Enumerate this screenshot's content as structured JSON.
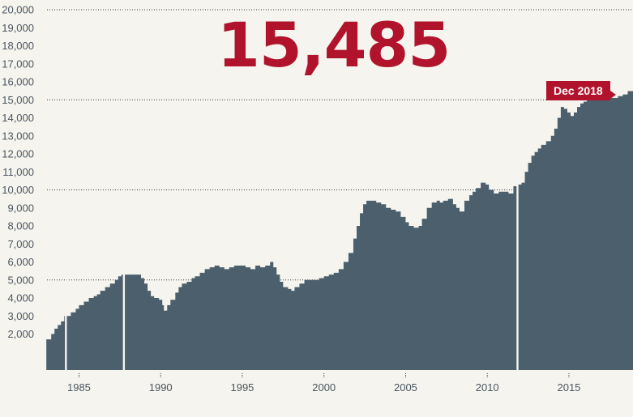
{
  "headline": {
    "value": "15,485"
  },
  "callout": {
    "label": "Dec 2018"
  },
  "colors": {
    "area": "#4b5f6d",
    "accent": "#b0132b",
    "background": "#f6f4ee",
    "axis_text": "#4a5661"
  },
  "chart_data": {
    "type": "area",
    "title": "",
    "xlabel": "",
    "ylabel": "",
    "xlim": [
      1982.0,
      2019.0
    ],
    "ylim": [
      0,
      20000
    ],
    "x_ticks": [
      1985,
      1990,
      1995,
      2000,
      2005,
      2010,
      2015
    ],
    "x_tick_labels": [
      "1985",
      "1990",
      "1995",
      "2000",
      "2005",
      "2010",
      "2015"
    ],
    "y_ticks": [
      2000,
      3000,
      4000,
      5000,
      6000,
      7000,
      8000,
      9000,
      10000,
      11000,
      12000,
      13000,
      14000,
      15000,
      16000,
      17000,
      18000,
      19000,
      20000
    ],
    "y_tick_labels": [
      "2,000",
      "3,000",
      "4,000",
      "5,000",
      "6,000",
      "7,000",
      "8,000",
      "9,000",
      "10,000",
      "11,000",
      "12,000",
      "13,000",
      "14,000",
      "15,000",
      "16,000",
      "17,000",
      "18,000",
      "19,000",
      "20,000"
    ],
    "dotted_reference_lines": [
      5000,
      10000,
      15000,
      20000
    ],
    "gaps_x": [
      1984.2,
      1987.75,
      2011.85
    ],
    "series": [
      {
        "x": [
          1983.0,
          1983.3,
          1983.5,
          1983.7,
          1983.9,
          1984.1,
          1984.5,
          1984.8,
          1985.0,
          1985.3,
          1985.6,
          1985.9,
          1986.1,
          1986.3,
          1986.6,
          1986.9,
          1987.2,
          1987.4,
          1987.6,
          1987.9,
          1988.2,
          1988.5,
          1988.8,
          1989.0,
          1989.2,
          1989.4,
          1989.6,
          1989.9,
          1990.1,
          1990.2,
          1990.4,
          1990.6,
          1990.9,
          1991.1,
          1991.3,
          1991.6,
          1991.9,
          1992.1,
          1992.4,
          1992.7,
          1993.0,
          1993.3,
          1993.6,
          1993.9,
          1994.2,
          1994.5,
          1994.8,
          1995.2,
          1995.5,
          1995.8,
          1996.1,
          1996.4,
          1996.7,
          1996.9,
          1997.1,
          1997.3,
          1997.5,
          1997.8,
          1998.0,
          1998.2,
          1998.5,
          1998.8,
          1999.1,
          1999.4,
          1999.7,
          2000.0,
          2000.3,
          2000.6,
          2000.9,
          2001.2,
          2001.5,
          2001.8,
          2002.0,
          2002.2,
          2002.4,
          2002.6,
          2002.9,
          2003.2,
          2003.5,
          2003.8,
          2004.1,
          2004.4,
          2004.7,
          2005.0,
          2005.2,
          2005.5,
          2005.8,
          2006.0,
          2006.3,
          2006.6,
          2006.9,
          2007.1,
          2007.3,
          2007.6,
          2007.9,
          2008.1,
          2008.3,
          2008.6,
          2008.9,
          2009.1,
          2009.3,
          2009.6,
          2009.9,
          2010.1,
          2010.4,
          2010.7,
          2011.0,
          2011.3,
          2011.6,
          2011.9,
          2012.1,
          2012.3,
          2012.5,
          2012.7,
          2012.9,
          2013.1,
          2013.3,
          2013.6,
          2013.9,
          2014.1,
          2014.3,
          2014.5,
          2014.7,
          2014.9,
          2015.1,
          2015.3,
          2015.5,
          2015.7,
          2015.9,
          2016.1,
          2016.3,
          2016.5,
          2016.8,
          2017.1,
          2017.4,
          2017.7,
          2018.0,
          2018.3,
          2018.6,
          2018.9
        ],
        "values": [
          1700,
          2000,
          2300,
          2500,
          2700,
          3000,
          3200,
          3400,
          3600,
          3800,
          4000,
          4100,
          4200,
          4400,
          4600,
          4800,
          5000,
          5200,
          5300,
          5300,
          5300,
          5300,
          5100,
          4800,
          4400,
          4100,
          4000,
          3900,
          3600,
          3300,
          3600,
          3900,
          4300,
          4600,
          4800,
          4900,
          5100,
          5200,
          5400,
          5600,
          5700,
          5800,
          5700,
          5600,
          5700,
          5800,
          5800,
          5700,
          5600,
          5800,
          5700,
          5800,
          6000,
          5700,
          5300,
          4900,
          4600,
          4500,
          4400,
          4600,
          4800,
          5000,
          5000,
          5000,
          5100,
          5200,
          5300,
          5400,
          5600,
          6000,
          6500,
          7300,
          8000,
          8700,
          9200,
          9400,
          9400,
          9300,
          9200,
          9000,
          8900,
          8800,
          8500,
          8200,
          8000,
          7900,
          8000,
          8400,
          9000,
          9300,
          9400,
          9300,
          9400,
          9500,
          9200,
          9000,
          8800,
          9400,
          9700,
          9900,
          10100,
          10400,
          10300,
          10000,
          9800,
          9900,
          9900,
          9800,
          10200,
          10300,
          10400,
          11000,
          11500,
          11900,
          12100,
          12300,
          12500,
          12700,
          13000,
          13400,
          14000,
          14600,
          14500,
          14300,
          14100,
          14300,
          14600,
          14800,
          14900,
          15000,
          15000,
          15000,
          15000,
          15000,
          15100,
          15100,
          15200,
          15300,
          15485,
          15485
        ]
      }
    ]
  }
}
